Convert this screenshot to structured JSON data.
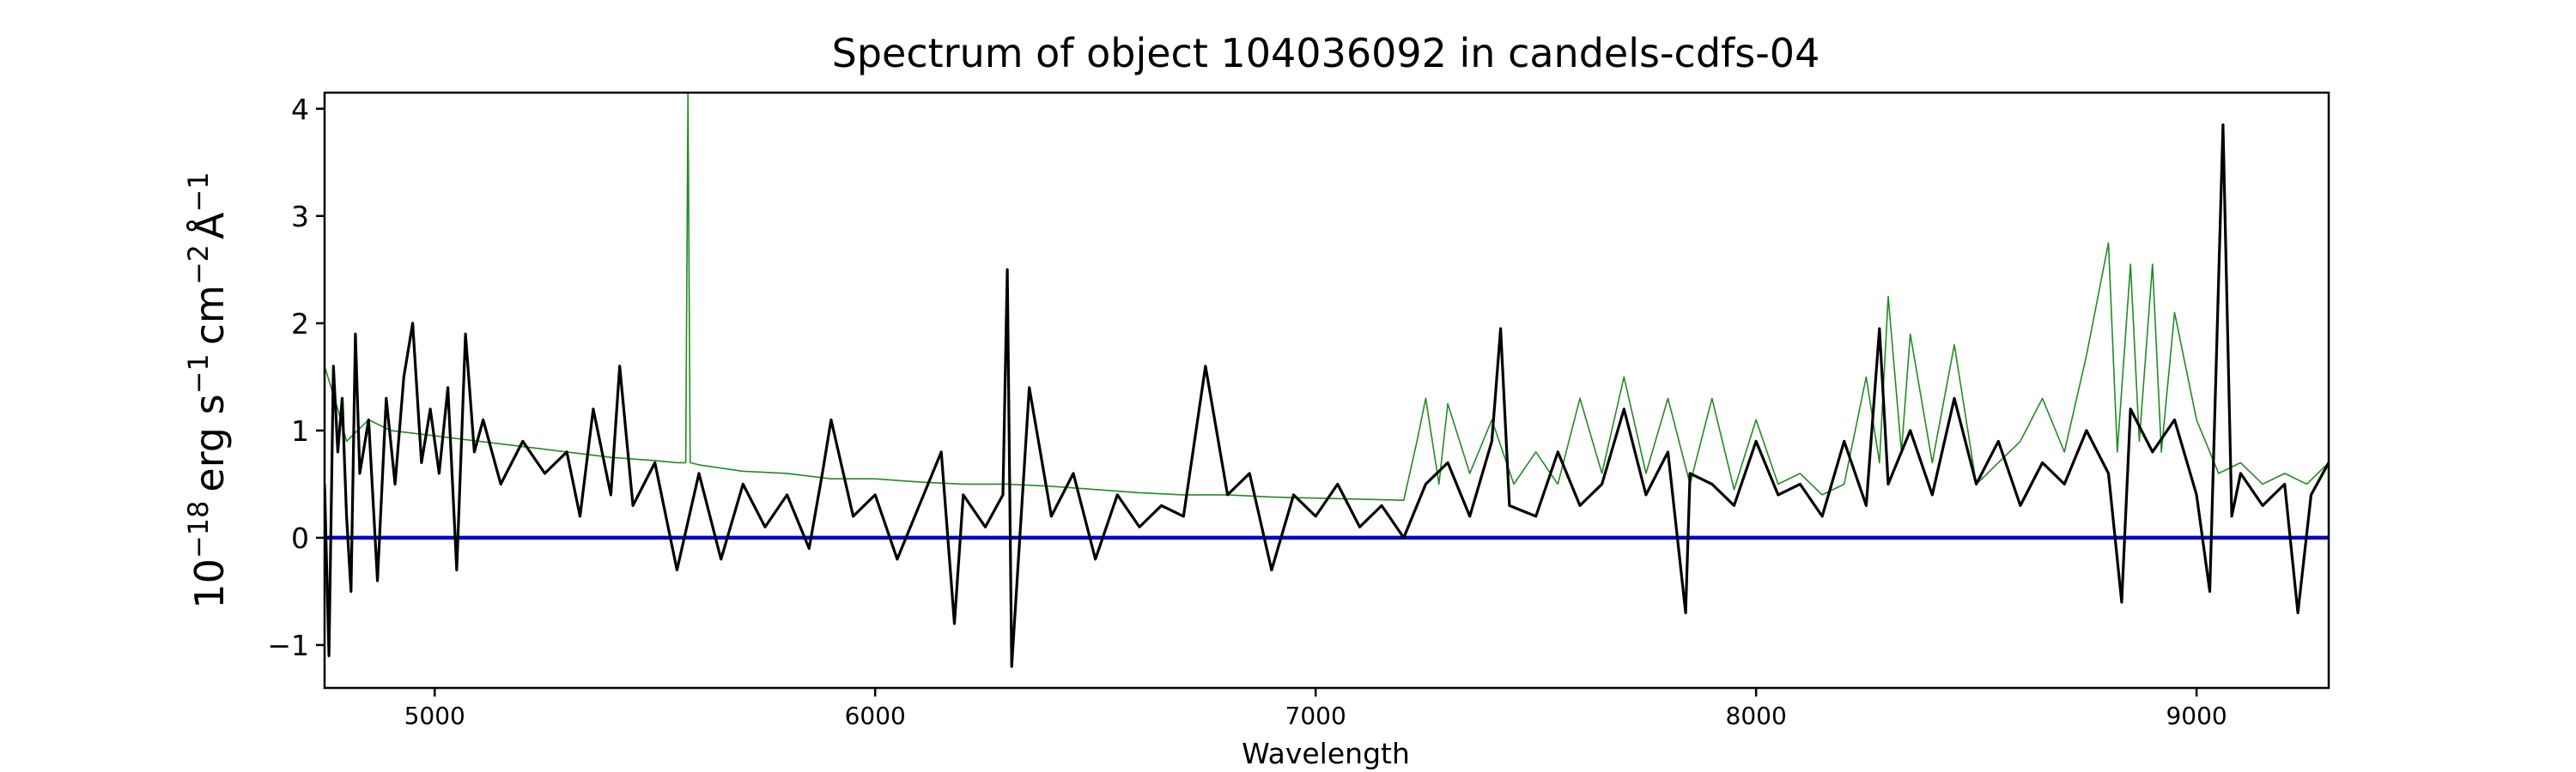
{
  "chart_data": {
    "type": "line",
    "title": "Spectrum of object 104036092 in candels-cdfs-04",
    "xlabel": "Wavelength",
    "ylabel_base": "10",
    "ylabel_exp": "−18",
    "ylabel_unit": "erg s",
    "ylabel_s_exp": "−1",
    "ylabel_cm": "cm",
    "ylabel_cm_exp": "−2",
    "ylabel_A": "Å",
    "ylabel_A_exp": "−1",
    "xlim": [
      4750,
      9300
    ],
    "ylim": [
      -1.4,
      4.15
    ],
    "xticks": [
      5000,
      6000,
      7000,
      8000,
      9000
    ],
    "yticks": [
      -1,
      0,
      1,
      2,
      3,
      4
    ],
    "grid": false,
    "colors": {
      "flux": "#000000",
      "error": "#228b22",
      "zero": "#0000cc"
    },
    "series": [
      {
        "key": "flux",
        "x": [
          4750,
          4760,
          4770,
          4780,
          4790,
          4800,
          4810,
          4820,
          4830,
          4850,
          4870,
          4890,
          4910,
          4930,
          4950,
          4970,
          4990,
          5010,
          5030,
          5050,
          5070,
          5090,
          5110,
          5150,
          5200,
          5250,
          5300,
          5330,
          5360,
          5400,
          5420,
          5450,
          5500,
          5550,
          5600,
          5650,
          5700,
          5750,
          5800,
          5850,
          5880,
          5900,
          5950,
          6000,
          6050,
          6100,
          6150,
          6180,
          6200,
          6250,
          6290,
          6300,
          6310,
          6350,
          6400,
          6450,
          6500,
          6550,
          6600,
          6650,
          6700,
          6750,
          6800,
          6850,
          6900,
          6950,
          7000,
          7050,
          7100,
          7150,
          7200,
          7250,
          7300,
          7350,
          7400,
          7420,
          7440,
          7500,
          7550,
          7600,
          7650,
          7700,
          7750,
          7800,
          7840,
          7850,
          7900,
          7950,
          8000,
          8050,
          8100,
          8150,
          8200,
          8250,
          8280,
          8300,
          8350,
          8400,
          8450,
          8500,
          8550,
          8600,
          8650,
          8700,
          8750,
          8800,
          8830,
          8850,
          8900,
          8950,
          9000,
          9030,
          9060,
          9080,
          9100,
          9150,
          9200,
          9230,
          9260,
          9300
        ],
        "y": [
          0.5,
          -1.1,
          1.6,
          0.8,
          1.3,
          0.2,
          -0.5,
          1.9,
          0.6,
          1.1,
          -0.4,
          1.3,
          0.5,
          1.5,
          2.0,
          0.7,
          1.2,
          0.6,
          1.4,
          -0.3,
          1.9,
          0.8,
          1.1,
          0.5,
          0.9,
          0.6,
          0.8,
          0.2,
          1.2,
          0.4,
          1.6,
          0.3,
          0.7,
          -0.3,
          0.6,
          -0.2,
          0.5,
          0.1,
          0.4,
          -0.1,
          0.6,
          1.1,
          0.2,
          0.4,
          -0.2,
          0.3,
          0.8,
          -0.8,
          0.4,
          0.1,
          0.4,
          2.5,
          -1.2,
          1.4,
          0.2,
          0.6,
          -0.2,
          0.4,
          0.1,
          0.3,
          0.2,
          1.6,
          0.4,
          0.6,
          -0.3,
          0.4,
          0.2,
          0.5,
          0.1,
          0.3,
          0.0,
          0.5,
          0.7,
          0.2,
          0.9,
          1.95,
          0.3,
          0.2,
          0.8,
          0.3,
          0.5,
          1.2,
          0.4,
          0.8,
          -0.7,
          0.6,
          0.5,
          0.3,
          0.9,
          0.4,
          0.5,
          0.2,
          0.9,
          0.3,
          1.95,
          0.5,
          1.0,
          0.4,
          1.3,
          0.5,
          0.9,
          0.3,
          0.7,
          0.5,
          1.0,
          0.6,
          -0.6,
          1.2,
          0.8,
          1.1,
          0.4,
          -0.5,
          3.85,
          0.2,
          0.6,
          0.3,
          0.5,
          -0.7,
          0.4,
          0.7
        ]
      },
      {
        "key": "error",
        "x": [
          4750,
          4780,
          4800,
          4850,
          4900,
          5000,
          5100,
          5200,
          5300,
          5400,
          5500,
          5550,
          5570,
          5575,
          5580,
          5600,
          5700,
          5800,
          5900,
          6000,
          6100,
          6200,
          6300,
          6400,
          6500,
          6600,
          6700,
          6800,
          6900,
          7000,
          7100,
          7200,
          7230,
          7250,
          7280,
          7300,
          7350,
          7400,
          7450,
          7500,
          7550,
          7600,
          7650,
          7700,
          7750,
          7800,
          7850,
          7900,
          7950,
          8000,
          8050,
          8100,
          8150,
          8200,
          8250,
          8280,
          8300,
          8330,
          8350,
          8400,
          8450,
          8500,
          8550,
          8600,
          8650,
          8700,
          8750,
          8800,
          8820,
          8850,
          8870,
          8900,
          8920,
          8950,
          9000,
          9050,
          9100,
          9150,
          9200,
          9250,
          9300
        ],
        "y": [
          1.6,
          1.2,
          0.9,
          1.1,
          1.0,
          0.95,
          0.9,
          0.85,
          0.8,
          0.75,
          0.72,
          0.7,
          0.7,
          4.15,
          0.7,
          0.68,
          0.62,
          0.6,
          0.55,
          0.55,
          0.52,
          0.5,
          0.5,
          0.48,
          0.45,
          0.42,
          0.4,
          0.4,
          0.38,
          0.37,
          0.36,
          0.35,
          0.9,
          1.3,
          0.5,
          1.25,
          0.6,
          1.1,
          0.5,
          0.8,
          0.5,
          1.3,
          0.6,
          1.5,
          0.6,
          1.3,
          0.5,
          1.3,
          0.45,
          1.1,
          0.5,
          0.6,
          0.4,
          0.5,
          1.5,
          0.7,
          2.25,
          0.8,
          1.9,
          0.7,
          1.8,
          0.5,
          0.7,
          0.9,
          1.3,
          0.8,
          1.7,
          2.75,
          0.8,
          2.55,
          0.9,
          2.55,
          0.8,
          2.1,
          1.1,
          0.6,
          0.7,
          0.5,
          0.6,
          0.5,
          0.7
        ]
      },
      {
        "key": "zero",
        "x": [
          4750,
          9300
        ],
        "y": [
          0,
          0
        ]
      }
    ]
  }
}
